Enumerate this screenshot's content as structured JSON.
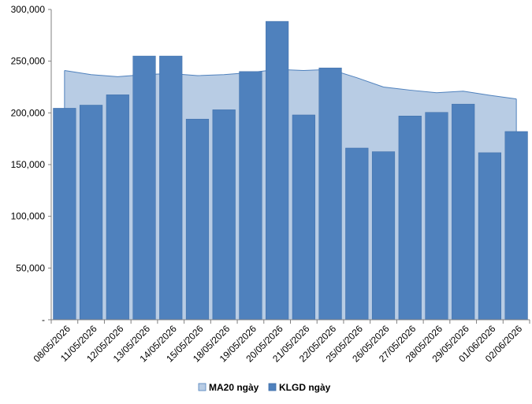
{
  "chart_data": {
    "type": "bar",
    "categories": [
      "08/05/2026",
      "11/05/2026",
      "12/05/2026",
      "13/05/2026",
      "14/05/2026",
      "15/05/2026",
      "18/05/2026",
      "19/05/2026",
      "20/05/2026",
      "21/05/2026",
      "22/05/2026",
      "25/05/2026",
      "26/05/2026",
      "27/05/2026",
      "28/05/2026",
      "29/05/2026",
      "01/06/2026",
      "02/06/2026"
    ],
    "series": [
      {
        "name": "MA20 ngày",
        "type": "area",
        "color": "#b8cce4",
        "stroke": "#4f81bd",
        "values": [
          241000,
          237000,
          235000,
          237000,
          238000,
          236000,
          237000,
          239000,
          242000,
          241000,
          242000,
          234000,
          225000,
          222000,
          219500,
          221000,
          217000,
          213500
        ]
      },
      {
        "name": "KLGD ngày",
        "type": "bar",
        "color": "#4f81bd",
        "values": [
          204500,
          207500,
          217500,
          255000,
          255000,
          194000,
          203000,
          240000,
          288500,
          198000,
          243500,
          166000,
          162500,
          197000,
          200500,
          208500,
          161500,
          182000
        ]
      }
    ],
    "ylim": [
      0,
      300000
    ],
    "yticks": [
      0,
      50000,
      100000,
      150000,
      200000,
      250000,
      300000
    ],
    "ytick_labels": [
      "-",
      "50,000",
      "100,000",
      "150,000",
      "200,000",
      "250,000",
      "300,000"
    ],
    "grid": false,
    "legend_position": "bottom",
    "title": "",
    "xlabel": "",
    "ylabel": ""
  }
}
